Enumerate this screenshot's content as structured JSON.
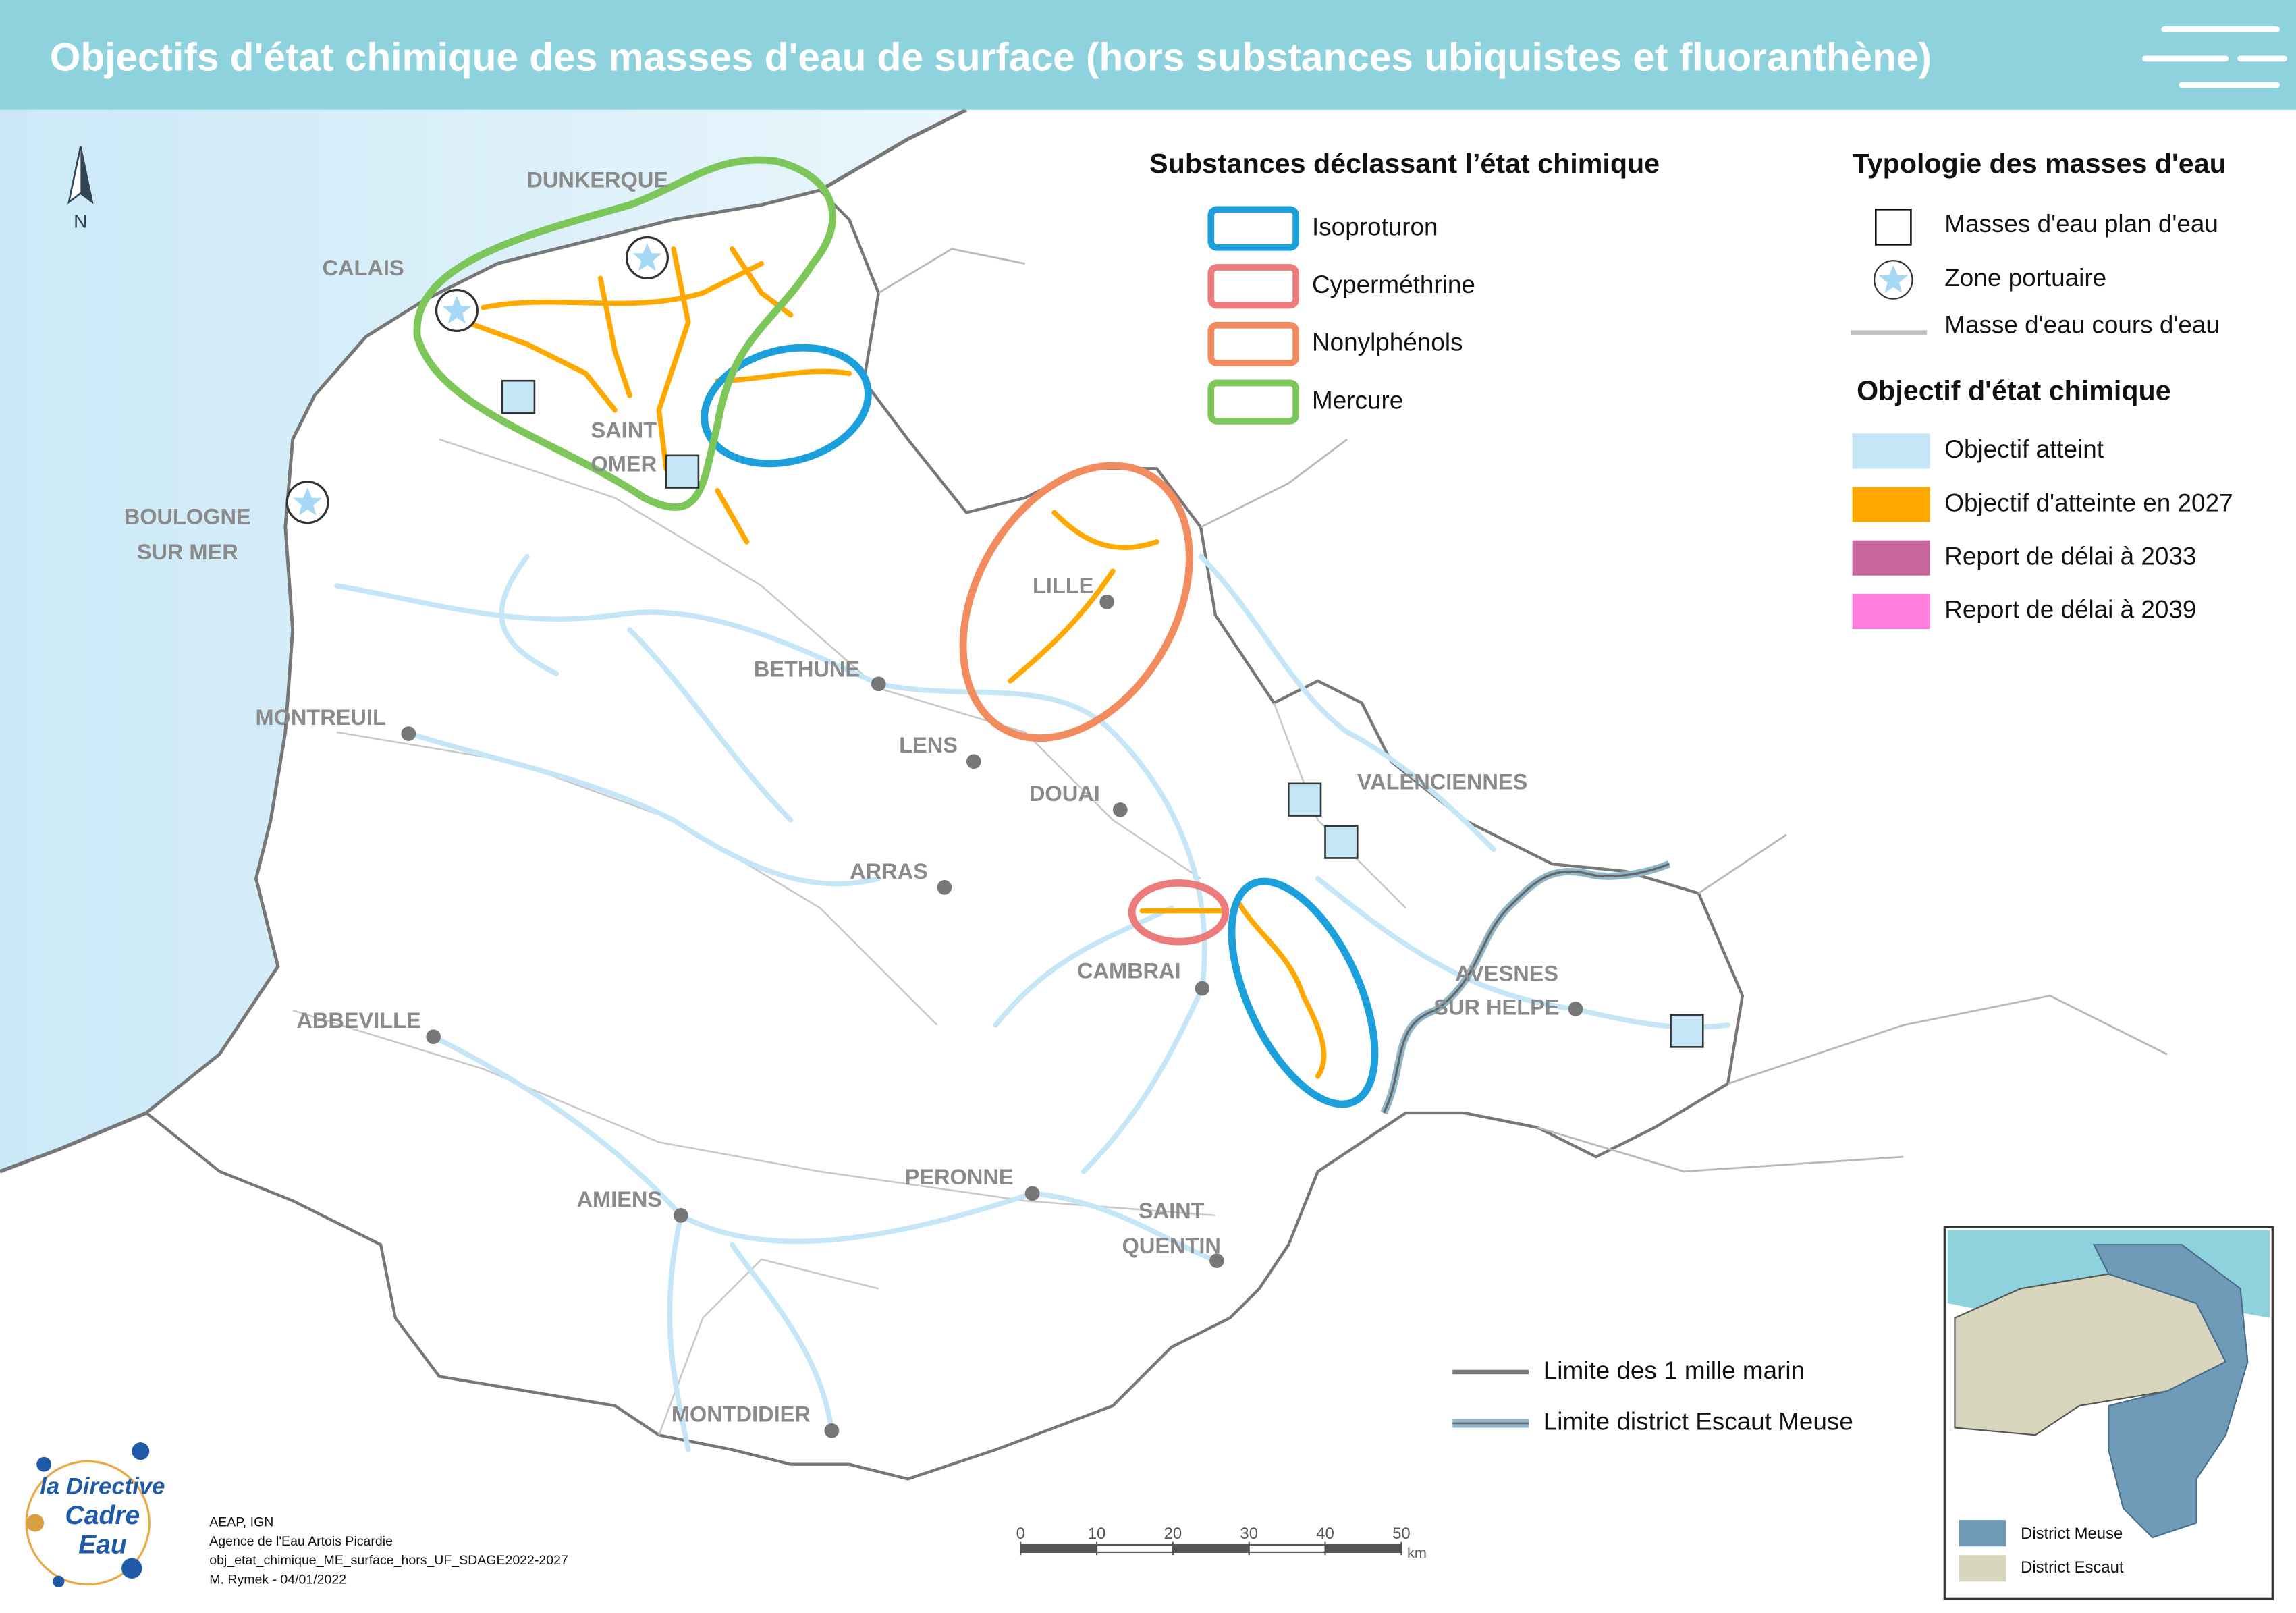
{
  "header": {
    "title": "Objectifs d'état chimique des masses d'eau de surface (hors substances ubiquistes et fluoranthène)"
  },
  "north": "N",
  "cities": [
    {
      "lines": [
        "DUNKERQUE"
      ]
    },
    {
      "lines": [
        "CALAIS"
      ]
    },
    {
      "lines": [
        "SAINT",
        "OMER"
      ]
    },
    {
      "lines": [
        "BOULOGNE",
        "SUR MER"
      ]
    },
    {
      "lines": [
        "LILLE"
      ]
    },
    {
      "lines": [
        "BETHUNE"
      ]
    },
    {
      "lines": [
        "MONTREUIL"
      ]
    },
    {
      "lines": [
        "LENS"
      ]
    },
    {
      "lines": [
        "DOUAI"
      ]
    },
    {
      "lines": [
        "VALENCIENNES"
      ]
    },
    {
      "lines": [
        "ARRAS"
      ]
    },
    {
      "lines": [
        "CAMBRAI"
      ]
    },
    {
      "lines": [
        "AVESNES",
        "SUR HELPE"
      ]
    },
    {
      "lines": [
        "ABBEVILLE"
      ]
    },
    {
      "lines": [
        "PERONNE"
      ]
    },
    {
      "lines": [
        "AMIENS"
      ]
    },
    {
      "lines": [
        "SAINT",
        "QUENTIN"
      ]
    },
    {
      "lines": [
        "MONTDIDIER"
      ]
    }
  ],
  "legend": {
    "substances": {
      "title": "Substances déclassant l’état chimique",
      "items": [
        "Isoproturon",
        "Cyperméthrine",
        "Nonylphénols",
        "Mercure"
      ]
    },
    "typology": {
      "title": "Typologie des masses d'eau",
      "items": [
        "Masses d'eau plan d'eau",
        "Zone portuaire",
        "Masse d'eau cours d'eau"
      ]
    },
    "objective": {
      "title": "Objectif d'état chimique",
      "items": [
        "Objectif atteint",
        "Objectif d'atteinte en 2027",
        "Report de délai à 2033",
        "Report de délai à 2039"
      ]
    },
    "limits": {
      "items": [
        "Limite des 1 mille marin",
        "Limite district Escaut Meuse"
      ]
    }
  },
  "scale": {
    "ticks": [
      0,
      10,
      20,
      30,
      40,
      50
    ],
    "unit": "km"
  },
  "credits": [
    "AEAP, IGN",
    "Agence de l'Eau Artois Picardie",
    "obj_etat_chimique_ME_surface_hors_UF_SDAGE2022-2027",
    "M. Rymek - 04/01/2022"
  ],
  "logo": [
    "la Directive",
    "Cadre",
    "Eau"
  ],
  "inset": {
    "items": [
      "District Meuse",
      "District Escaut"
    ]
  }
}
